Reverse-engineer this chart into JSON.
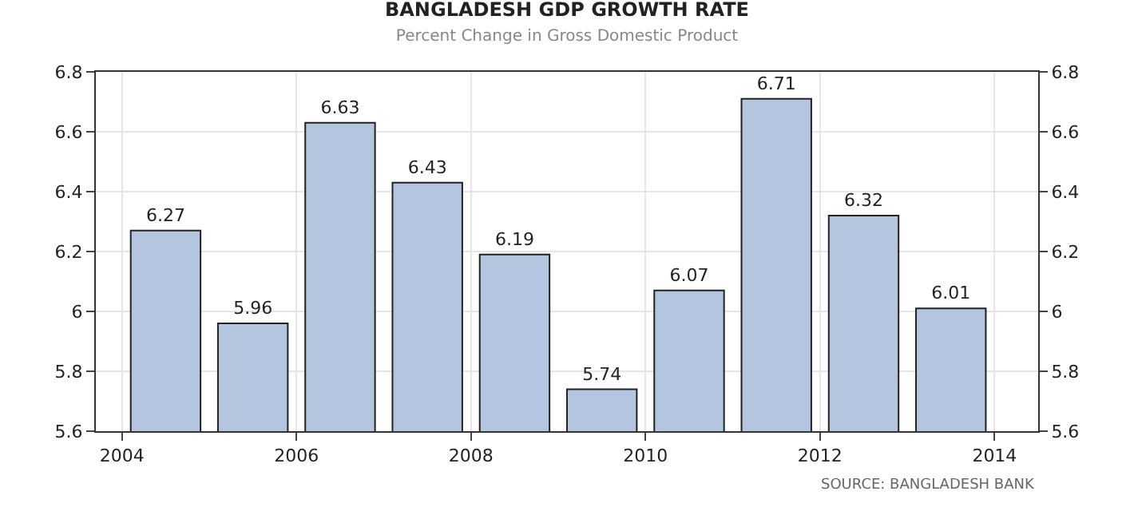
{
  "chart_data": {
    "type": "bar",
    "title": "BANGLADESH GDP GROWTH RATE",
    "subtitle": "Percent Change in Gross Domestic Product",
    "x": [
      2004.5,
      2005.5,
      2006.5,
      2007.5,
      2008.5,
      2009.5,
      2010.5,
      2011.5,
      2012.5,
      2013.5
    ],
    "values": [
      6.27,
      5.96,
      6.63,
      6.43,
      6.19,
      5.74,
      6.07,
      6.71,
      6.32,
      6.01
    ],
    "color": "#b4c5df",
    "xlim": [
      2003.7,
      2014.5
    ],
    "xticks": [
      2004,
      2006,
      2008,
      2010,
      2012,
      2014
    ],
    "ylim": [
      5.6,
      6.8
    ],
    "yticks": [
      5.6,
      5.8,
      6,
      6.2,
      6.4,
      6.6,
      6.8
    ],
    "y2lim": [
      5.6,
      6.8
    ],
    "y2ticks": [
      5.6,
      5.8,
      6,
      6.2,
      6.4,
      6.6,
      6.8
    ],
    "data_labels": true,
    "grid": true,
    "annotations": [
      "SOURCE: BANGLADESH BANK"
    ]
  }
}
